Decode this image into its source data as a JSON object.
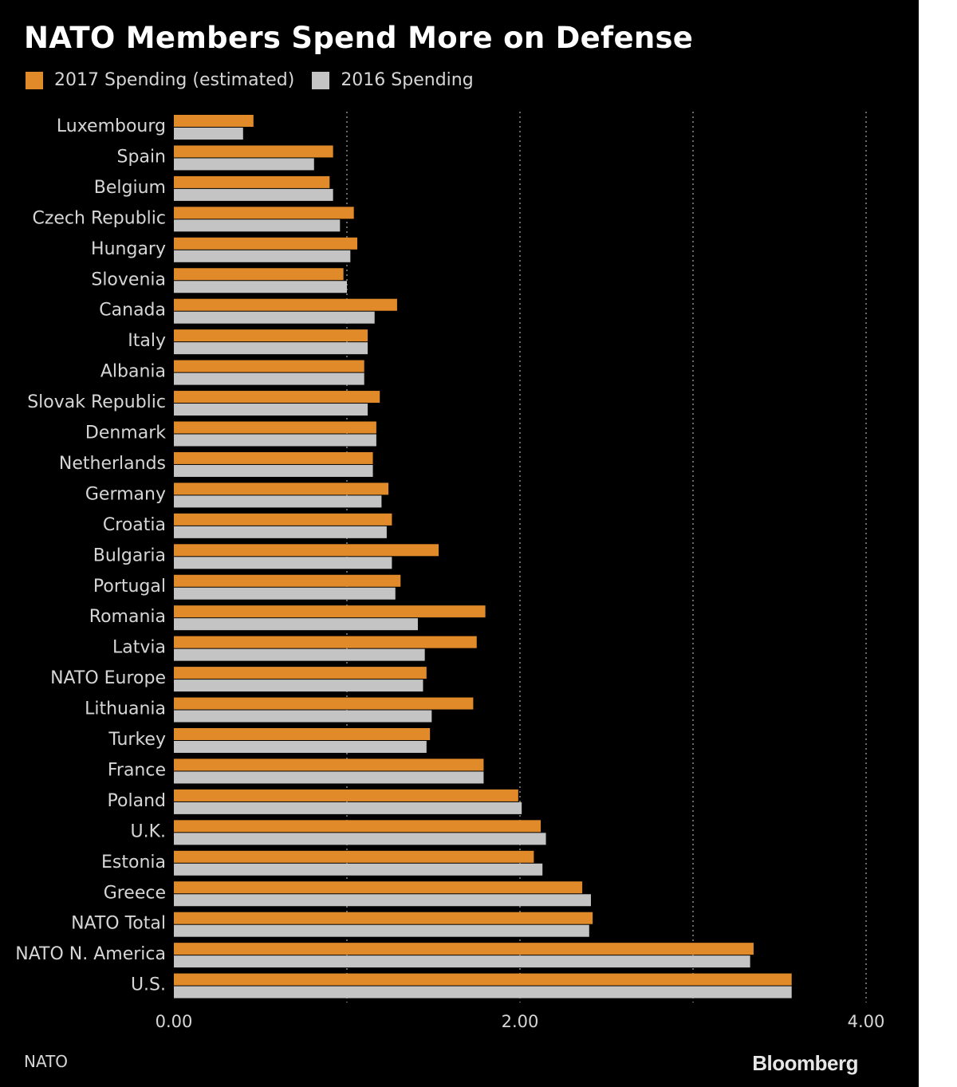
{
  "title": "NATO Members Spend More on Defense",
  "source": "NATO",
  "brand": "Bloomberg",
  "colors": {
    "series_2017": "#e08a2a",
    "series_2016": "#c4c4c4",
    "grid": "#8a8a8a",
    "text": "#d6d6d6"
  },
  "legend": [
    {
      "label": "2017 Spending (estimated)",
      "color": "#e08a2a"
    },
    {
      "label": "2016 Spending",
      "color": "#c4c4c4"
    }
  ],
  "chart_data": {
    "type": "bar",
    "orientation": "horizontal",
    "title": "NATO Members Spend More on Defense",
    "xlabel": "",
    "ylabel": "",
    "xlim": [
      0,
      4
    ],
    "x_ticks": [
      0,
      2,
      4
    ],
    "x_tick_labels": [
      "0.00",
      "2.00",
      "4.00"
    ],
    "grid": "vertical dotted",
    "legend_position": "top-left",
    "categories": [
      "Luxembourg",
      "Spain",
      "Belgium",
      "Czech Republic",
      "Hungary",
      "Slovenia",
      "Canada",
      "Italy",
      "Albania",
      "Slovak Republic",
      "Denmark",
      "Netherlands",
      "Germany",
      "Croatia",
      "Bulgaria",
      "Portugal",
      "Romania",
      "Latvia",
      "NATO Europe",
      "Lithuania",
      "Turkey",
      "France",
      "Poland",
      "U.K.",
      "Estonia",
      "Greece",
      "NATO Total",
      "NATO N. America",
      "U.S."
    ],
    "series": [
      {
        "name": "2017 Spending (estimated)",
        "values": [
          0.46,
          0.92,
          0.9,
          1.04,
          1.06,
          0.98,
          1.29,
          1.12,
          1.1,
          1.19,
          1.17,
          1.15,
          1.24,
          1.26,
          1.53,
          1.31,
          1.8,
          1.75,
          1.46,
          1.73,
          1.48,
          1.79,
          1.99,
          2.12,
          2.08,
          2.36,
          2.42,
          3.35,
          3.57
        ]
      },
      {
        "name": "2016 Spending",
        "values": [
          0.4,
          0.81,
          0.92,
          0.96,
          1.02,
          1.0,
          1.16,
          1.12,
          1.1,
          1.12,
          1.17,
          1.15,
          1.2,
          1.23,
          1.26,
          1.28,
          1.41,
          1.45,
          1.44,
          1.49,
          1.46,
          1.79,
          2.01,
          2.15,
          2.13,
          2.41,
          2.4,
          3.33,
          3.57
        ]
      }
    ]
  }
}
